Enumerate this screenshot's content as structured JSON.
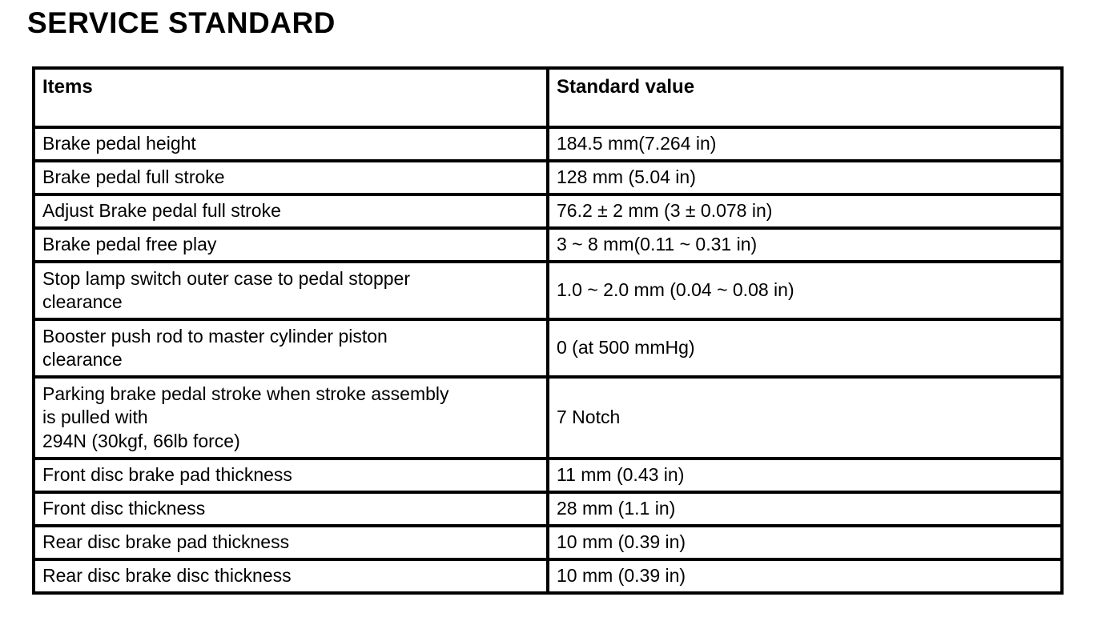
{
  "page": {
    "title": "SERVICE STANDARD"
  },
  "table": {
    "headers": {
      "items": "Items",
      "standard_value": "Standard value"
    },
    "rows": [
      {
        "item": "Brake pedal height",
        "value": "184.5 mm(7.264 in)"
      },
      {
        "item": "Brake pedal full stroke",
        "value": "128 mm (5.04 in)"
      },
      {
        "item": "Adjust Brake pedal full stroke",
        "value": "76.2 ± 2 mm (3 ± 0.078 in)"
      },
      {
        "item": "Brake pedal free play",
        "value": "3 ~ 8 mm(0.11 ~ 0.31 in)"
      },
      {
        "item": "Stop lamp switch outer case to pedal stopper\nclearance",
        "value": "1.0 ~ 2.0 mm (0.04 ~ 0.08 in)"
      },
      {
        "item": "Booster push rod to master cylinder piston\nclearance",
        "value": "0 (at 500 mmHg)"
      },
      {
        "item": "Parking brake pedal stroke when stroke assembly\nis pulled with\n294N (30kgf, 66lb force)",
        "value": "7 Notch"
      },
      {
        "item": "Front disc brake pad thickness",
        "value": "11 mm (0.43 in)"
      },
      {
        "item": "Front disc thickness",
        "value": "28 mm (1.1 in)"
      },
      {
        "item": "Rear disc brake pad thickness",
        "value": "10 mm (0.39 in)"
      },
      {
        "item": "Rear disc brake disc thickness",
        "value": "10 mm (0.39 in)"
      }
    ]
  }
}
